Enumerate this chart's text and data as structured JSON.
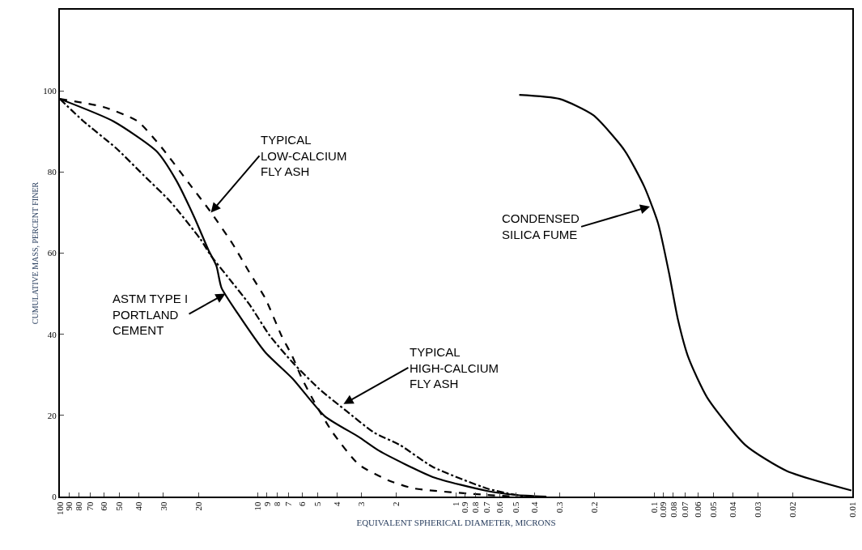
{
  "chart_data": {
    "type": "line",
    "xlabel": "EQUIVALENT SPHERICAL DIAMETER, MICRONS",
    "ylabel": "CUMULATIVE MASS, PERCENT FINER",
    "log": "x",
    "xlim": [
      100,
      0.01
    ],
    "xticks": [
      100,
      90,
      80,
      70,
      60,
      50,
      40,
      30,
      20,
      10,
      9,
      8,
      7,
      6,
      5,
      4,
      3,
      2,
      1,
      0.9,
      0.8,
      0.7,
      0.6,
      0.5,
      0.4,
      0.3,
      0.2,
      0.1,
      0.09,
      0.08,
      0.07,
      0.06,
      0.05,
      0.04,
      0.03,
      0.02,
      0.01
    ],
    "ylim": [
      0,
      120
    ],
    "yticks": [
      0,
      20,
      40,
      60,
      80,
      100
    ],
    "legend": false,
    "marker": "none",
    "series": [
      {
        "color": "#000000",
        "line_style": "solid",
        "x": [
          100,
          53.7,
          32.5,
          25.9,
          20.9,
          17.8,
          16.2,
          15.3,
          12.6,
          9.2,
          6.7,
          4.6,
          3.1,
          2.45,
          1.31,
          0.7,
          0.5,
          0.35
        ],
        "values": [
          98,
          92.5,
          85.1,
          78,
          68.7,
          60.8,
          56.8,
          51.5,
          45,
          35.6,
          29.1,
          19.8,
          14.7,
          11.3,
          4.8,
          1.4,
          0.4,
          0
        ]
      },
      {
        "color": "#000000",
        "line_style": "dashed",
        "x": [
          100,
          60,
          40.5,
          30.5,
          22.3,
          17.3,
          13.4,
          11.1,
          9.2,
          7.6,
          6.7,
          6.0,
          5.1,
          4.2,
          3.1,
          2.2,
          1.63,
          0.7,
          0.5
        ],
        "values": [
          98,
          96,
          92.5,
          85.9,
          77.2,
          70.1,
          62.2,
          55.4,
          48.9,
          39.6,
          34.5,
          29.1,
          22.6,
          15.8,
          7.9,
          4.0,
          2.0,
          0.4,
          0
        ]
      },
      {
        "color": "#000000",
        "line_style": "dashdot",
        "x": [
          100,
          76,
          52.1,
          37.8,
          27.7,
          19.5,
          17.3,
          14.3,
          11.1,
          8.7,
          6.7,
          4.9,
          3.6,
          2.6,
          1.92,
          1.31,
          0.7,
          0.55,
          0.45
        ],
        "values": [
          98,
          92.5,
          85.9,
          79.2,
          72.7,
          63.4,
          59.4,
          54.3,
          47.5,
          39.6,
          33.1,
          26.5,
          21.2,
          15.8,
          12.7,
          7.3,
          2.0,
          0.8,
          0
        ]
      },
      {
        "color": "#000000",
        "line_style": "solid",
        "x": [
          0.48,
          0.3,
          0.203,
          0.141,
          0.112,
          0.0955,
          0.084,
          0.076,
          0.067,
          0.054,
          0.0345,
          0.0214,
          0.0101
        ],
        "values": [
          99,
          98,
          94,
          85.3,
          76.3,
          67.3,
          54.9,
          43.8,
          34.1,
          24.4,
          12.6,
          6.3,
          1.5
        ]
      }
    ],
    "annotations": [
      {
        "text": "TYPICAL\nLOW-CALCIUM\nFLY ASH",
        "x": 17.3,
        "y": 70
      },
      {
        "text": "ASTM TYPE I\nPORTLAND\nCEMENT",
        "x": 14.6,
        "y": 50
      },
      {
        "text": "TYPICAL\nHIGH-CALCIUM\nFLY ASH",
        "x": 3.7,
        "y": 22.8
      },
      {
        "text": "CONDENSED\nSILICA FUME",
        "x": 0.105,
        "y": 71.5
      }
    ]
  }
}
